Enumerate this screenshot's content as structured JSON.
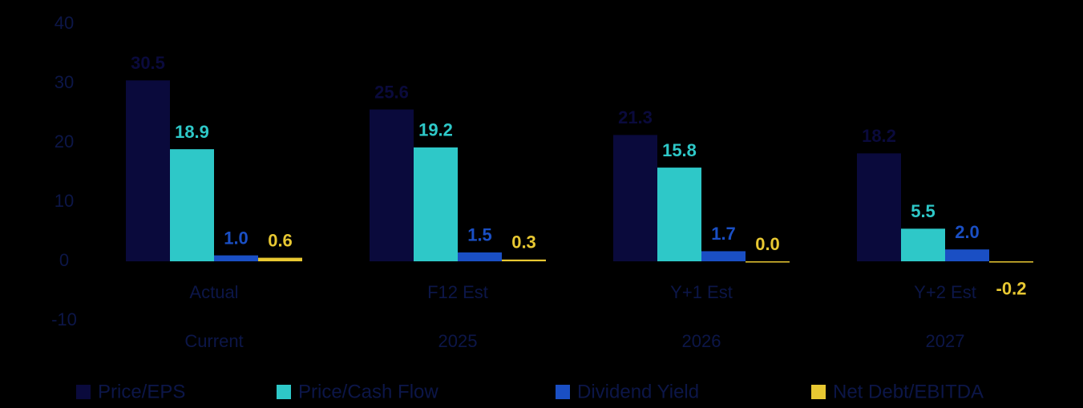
{
  "chart_data": {
    "type": "bar",
    "categories": [
      "Actual",
      "F12 Est",
      "Y+1 Est",
      "Y+2 Est"
    ],
    "subcategories": [
      "Current",
      "2025",
      "2026",
      "2027"
    ],
    "series": [
      {
        "name": "Price/EPS",
        "color": "#0a0a3c",
        "values": [
          30.5,
          25.6,
          21.3,
          18.2
        ],
        "value_labels": [
          "30.5",
          "25.6",
          "21.3",
          "18.2"
        ]
      },
      {
        "name": "Price/Cash Flow",
        "color": "#2ec8c8",
        "values": [
          18.9,
          19.2,
          15.8,
          5.5
        ],
        "value_labels": [
          "18.9",
          "19.2",
          "15.8",
          "5.5"
        ]
      },
      {
        "name": "Dividend Yield",
        "color": "#1a4fc4",
        "values": [
          1.0,
          1.5,
          1.7,
          2.0
        ],
        "value_labels": [
          "1.0",
          "1.5",
          "1.7",
          "2.0"
        ]
      },
      {
        "name": "Net Debt/EBITDA",
        "color": "#e8c832",
        "values": [
          0.6,
          0.3,
          0.0,
          -0.2
        ],
        "value_labels": [
          "0.6",
          "0.3",
          "0.0",
          "-0.2"
        ]
      }
    ],
    "ylim": [
      -10,
      40
    ],
    "yticks": [
      -10,
      0,
      10,
      20,
      30,
      40
    ],
    "grid": false,
    "legend": "bottom"
  }
}
